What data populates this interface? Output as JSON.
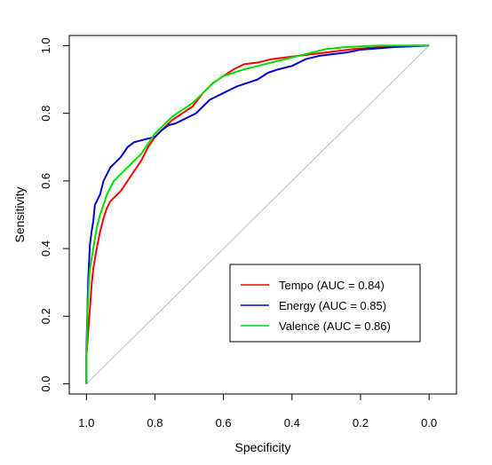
{
  "chart_data": {
    "type": "line",
    "title": "",
    "xlabel": "Specificity",
    "ylabel": "Sensitivity",
    "xlim": [
      1.05,
      -0.08
    ],
    "ylim": [
      -0.03,
      1.03
    ],
    "x_reversed": true,
    "x_ticks": [
      1.0,
      0.8,
      0.6,
      0.4,
      0.2,
      0.0
    ],
    "x_tick_labels": [
      "1.0",
      "0.8",
      "0.6",
      "0.4",
      "0.2",
      "0.0"
    ],
    "y_ticks": [
      0.0,
      0.2,
      0.4,
      0.6,
      0.8,
      1.0
    ],
    "y_tick_labels": [
      "0.0",
      "0.2",
      "0.4",
      "0.6",
      "0.8",
      "1.0"
    ],
    "grid": false,
    "legend_position": "bottom-right",
    "reference_line": {
      "from": [
        1.0,
        0.0
      ],
      "to": [
        0.0,
        1.0
      ],
      "color": "#bdbdbd"
    },
    "series": [
      {
        "name": "Tempo (AUC = 0.84)",
        "color": "#ff0000",
        "x": [
          1.0,
          1.0,
          0.995,
          0.99,
          0.985,
          0.98,
          0.97,
          0.96,
          0.95,
          0.94,
          0.93,
          0.92,
          0.9,
          0.88,
          0.86,
          0.84,
          0.82,
          0.8,
          0.78,
          0.75,
          0.72,
          0.69,
          0.66,
          0.63,
          0.6,
          0.57,
          0.54,
          0.5,
          0.46,
          0.42,
          0.38,
          0.34,
          0.3,
          0.26,
          0.22,
          0.18,
          0.14,
          0.1,
          0.05,
          0.0
        ],
        "y": [
          0.0,
          0.08,
          0.15,
          0.22,
          0.29,
          0.34,
          0.4,
          0.45,
          0.49,
          0.52,
          0.54,
          0.55,
          0.57,
          0.6,
          0.63,
          0.66,
          0.7,
          0.73,
          0.75,
          0.78,
          0.8,
          0.82,
          0.86,
          0.89,
          0.91,
          0.93,
          0.945,
          0.95,
          0.96,
          0.965,
          0.97,
          0.975,
          0.98,
          0.985,
          0.99,
          0.993,
          0.996,
          0.998,
          1.0,
          1.0
        ]
      },
      {
        "name": "Energy (AUC = 0.85)",
        "color": "#0000cc",
        "x": [
          1.0,
          1.0,
          0.995,
          0.99,
          0.985,
          0.98,
          0.975,
          0.97,
          0.96,
          0.95,
          0.94,
          0.93,
          0.92,
          0.9,
          0.88,
          0.86,
          0.84,
          0.82,
          0.8,
          0.78,
          0.76,
          0.74,
          0.72,
          0.7,
          0.68,
          0.66,
          0.64,
          0.62,
          0.6,
          0.58,
          0.56,
          0.53,
          0.5,
          0.47,
          0.44,
          0.4,
          0.36,
          0.32,
          0.28,
          0.24,
          0.2,
          0.15,
          0.1,
          0.05,
          0.0
        ],
        "y": [
          0.0,
          0.1,
          0.3,
          0.41,
          0.45,
          0.48,
          0.53,
          0.54,
          0.56,
          0.6,
          0.62,
          0.64,
          0.65,
          0.67,
          0.7,
          0.715,
          0.72,
          0.725,
          0.73,
          0.75,
          0.765,
          0.77,
          0.78,
          0.79,
          0.8,
          0.82,
          0.84,
          0.85,
          0.86,
          0.87,
          0.88,
          0.89,
          0.9,
          0.92,
          0.93,
          0.94,
          0.96,
          0.97,
          0.975,
          0.98,
          0.988,
          0.992,
          0.996,
          0.998,
          1.0
        ]
      },
      {
        "name": "Valence (AUC = 0.86)",
        "color": "#00dd00",
        "x": [
          1.0,
          1.0,
          0.997,
          0.993,
          0.99,
          0.985,
          0.98,
          0.975,
          0.97,
          0.96,
          0.95,
          0.94,
          0.93,
          0.92,
          0.9,
          0.88,
          0.86,
          0.84,
          0.82,
          0.8,
          0.78,
          0.75,
          0.72,
          0.69,
          0.66,
          0.63,
          0.6,
          0.57,
          0.54,
          0.5,
          0.46,
          0.42,
          0.38,
          0.34,
          0.3,
          0.25,
          0.2,
          0.15,
          0.1,
          0.05,
          0.0
        ],
        "y": [
          0.0,
          0.06,
          0.2,
          0.3,
          0.34,
          0.37,
          0.4,
          0.43,
          0.46,
          0.5,
          0.53,
          0.56,
          0.58,
          0.6,
          0.62,
          0.64,
          0.66,
          0.68,
          0.71,
          0.74,
          0.76,
          0.79,
          0.81,
          0.83,
          0.86,
          0.89,
          0.91,
          0.92,
          0.93,
          0.94,
          0.95,
          0.96,
          0.97,
          0.98,
          0.99,
          0.995,
          0.998,
          1.0,
          1.0,
          1.0,
          1.0
        ]
      }
    ]
  }
}
